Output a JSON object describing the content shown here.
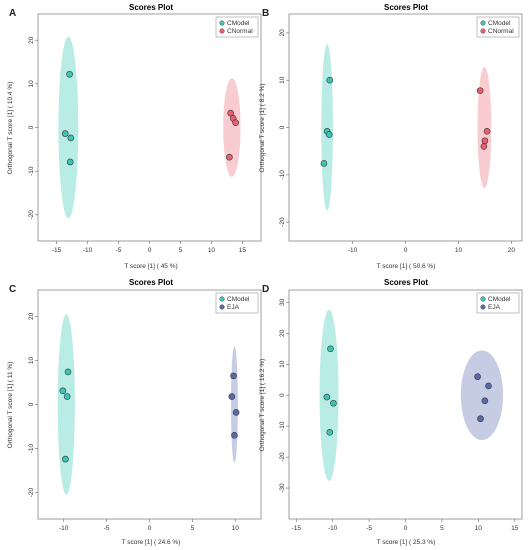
{
  "chart_data": [
    {
      "type": "scatter",
      "panel_label": "A",
      "title": "Scores Plot",
      "xlabel": "T score [1] ( 45 %)",
      "ylabel": "Orthogonal T score [1] ( 10.4 %)",
      "xlim": [
        -18,
        18
      ],
      "ylim": [
        -26,
        26
      ],
      "xticks": [
        -15,
        -10,
        -5,
        0,
        5,
        10,
        15
      ],
      "yticks": [
        -20,
        -10,
        0,
        10,
        20
      ],
      "legend_position": "top-right",
      "series": [
        {
          "name": "CModel",
          "color": "#3cc4b4",
          "ellipse_fill": "#ade9e0",
          "points": [
            [
              -12.9,
              12.2
            ],
            [
              -13.6,
              -1.4
            ],
            [
              -12.7,
              -2.4
            ],
            [
              -12.8,
              -7.9
            ]
          ],
          "ellipse": {
            "cx": -13.1,
            "cy": 0,
            "rx": 1.6,
            "ry": 20.8
          }
        },
        {
          "name": "CNormal",
          "color": "#e8606e",
          "ellipse_fill": "#f7c3c9",
          "points": [
            [
              13.1,
              3.3
            ],
            [
              13.5,
              2.1
            ],
            [
              13.9,
              1.1
            ],
            [
              12.9,
              -6.8
            ]
          ],
          "ellipse": {
            "cx": 13.3,
            "cy": 0,
            "rx": 1.4,
            "ry": 11.3
          }
        }
      ]
    },
    {
      "type": "scatter",
      "panel_label": "B",
      "title": "Scores Plot",
      "xlabel": "T score [1] ( 50.6 %)",
      "ylabel": "Orthogonal T score [1] ( 8.2 %)",
      "xlim": [
        -22,
        22
      ],
      "ylim": [
        -24,
        24
      ],
      "xticks": [
        -10,
        0,
        10,
        20
      ],
      "yticks": [
        -20,
        -10,
        0,
        10,
        20
      ],
      "legend_position": "top-right",
      "series": [
        {
          "name": "CModel",
          "color": "#3cc4b4",
          "ellipse_fill": "#ade9e0",
          "points": [
            [
              -14.3,
              10.0
            ],
            [
              -14.8,
              -0.8
            ],
            [
              -14.4,
              -1.5
            ],
            [
              -15.4,
              -7.6
            ]
          ],
          "ellipse": {
            "cx": -14.8,
            "cy": 0,
            "rx": 1.1,
            "ry": 17.6
          }
        },
        {
          "name": "CNormal",
          "color": "#e8606e",
          "ellipse_fill": "#f7c3c9",
          "points": [
            [
              14.1,
              7.8
            ],
            [
              15.4,
              -0.8
            ],
            [
              15.0,
              -2.8
            ],
            [
              14.8,
              -4.0
            ]
          ],
          "ellipse": {
            "cx": 14.9,
            "cy": 0,
            "rx": 1.3,
            "ry": 12.8
          }
        }
      ]
    },
    {
      "type": "scatter",
      "panel_label": "C",
      "title": "Scores Plot",
      "xlabel": "T score [1] ( 24.6 %)",
      "ylabel": "Orthogonal T score [1] ( 11 %)",
      "xlim": [
        -13,
        13
      ],
      "ylim": [
        -26,
        26
      ],
      "xticks": [
        -10,
        -5,
        0,
        5,
        10
      ],
      "yticks": [
        -20,
        -10,
        0,
        10,
        20
      ],
      "legend_position": "top-right",
      "series": [
        {
          "name": "CModel",
          "color": "#3cc4b4",
          "ellipse_fill": "#ade9e0",
          "points": [
            [
              -9.5,
              7.4
            ],
            [
              -10.1,
              3.1
            ],
            [
              -9.6,
              1.8
            ],
            [
              -9.8,
              -12.4
            ]
          ],
          "ellipse": {
            "cx": -9.7,
            "cy": 0,
            "rx": 1.0,
            "ry": 20.5
          }
        },
        {
          "name": "EJA",
          "color": "#5a6aa8",
          "ellipse_fill": "#bbc3de",
          "points": [
            [
              9.8,
              6.5
            ],
            [
              9.6,
              1.8
            ],
            [
              10.1,
              -1.8
            ],
            [
              9.9,
              -7.0
            ]
          ],
          "ellipse": {
            "cx": 9.9,
            "cy": 0,
            "rx": 0.4,
            "ry": 13.2
          }
        }
      ]
    },
    {
      "type": "scatter",
      "panel_label": "D",
      "title": "Scores Plot",
      "xlabel": "T score [1] ( 25.3 %)",
      "ylabel": "Orthogonal T score [1] ( 16.2 %)",
      "xlim": [
        -16,
        16
      ],
      "ylim": [
        -40,
        34
      ],
      "xticks": [
        -15,
        -10,
        -5,
        0,
        5,
        10,
        15
      ],
      "yticks": [
        -30,
        -20,
        -10,
        0,
        10,
        20,
        30
      ],
      "legend_position": "top-right",
      "series": [
        {
          "name": "CModel",
          "color": "#3cc4b4",
          "ellipse_fill": "#ade9e0",
          "points": [
            [
              -10.3,
              15.0
            ],
            [
              -10.8,
              -0.6
            ],
            [
              -9.9,
              -2.6
            ],
            [
              -10.4,
              -12.0
            ]
          ],
          "ellipse": {
            "cx": -10.5,
            "cy": 0,
            "rx": 1.3,
            "ry": 27.7
          }
        },
        {
          "name": "EJA",
          "color": "#5a6aa8",
          "ellipse_fill": "#bbc3de",
          "points": [
            [
              9.9,
              6.0
            ],
            [
              11.4,
              3.0
            ],
            [
              10.9,
              -1.8
            ],
            [
              10.3,
              -7.6
            ]
          ],
          "ellipse": {
            "cx": 10.5,
            "cy": 0,
            "rx": 2.9,
            "ry": 14.5
          }
        }
      ]
    }
  ]
}
